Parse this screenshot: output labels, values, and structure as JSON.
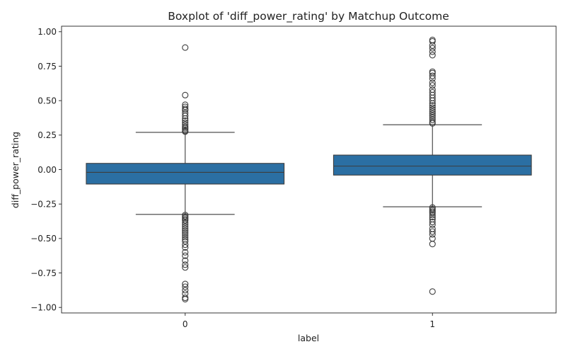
{
  "chart_data": {
    "type": "boxplot",
    "title": "Boxplot of 'diff_power_rating' by Matchup Outcome",
    "xlabel": "label",
    "ylabel": "diff_power_rating",
    "ylim": [
      -1.04,
      1.04
    ],
    "yticks": [
      1.0,
      0.75,
      0.5,
      0.25,
      0.0,
      -0.25,
      -0.5,
      -0.75,
      -1.0
    ],
    "ytick_labels": [
      "1.00",
      "0.75",
      "0.50",
      "0.25",
      "0.00",
      "−0.25",
      "−0.50",
      "−0.75",
      "−1.00"
    ],
    "categories": [
      "0",
      "1"
    ],
    "box_color": "#2b6fa3",
    "grid": false,
    "boxes": [
      {
        "category": "0",
        "whisker_low": -0.325,
        "q1": -0.105,
        "median": -0.02,
        "q3": 0.045,
        "whisker_high": 0.27,
        "outliers": [
          0.885,
          0.54,
          0.47,
          0.455,
          0.44,
          0.43,
          0.41,
          0.39,
          0.37,
          0.355,
          0.34,
          0.325,
          0.31,
          0.3,
          0.29,
          0.28,
          0.275,
          -0.33,
          -0.34,
          -0.35,
          -0.36,
          -0.37,
          -0.385,
          -0.4,
          -0.415,
          -0.43,
          -0.445,
          -0.46,
          -0.475,
          -0.49,
          -0.505,
          -0.52,
          -0.545,
          -0.565,
          -0.6,
          -0.625,
          -0.66,
          -0.69,
          -0.71,
          -0.83,
          -0.85,
          -0.875,
          -0.9,
          -0.93,
          -0.94
        ]
      },
      {
        "category": "1",
        "whisker_low": -0.27,
        "q1": -0.04,
        "median": 0.025,
        "q3": 0.105,
        "whisker_high": 0.325,
        "outliers": [
          0.94,
          0.93,
          0.9,
          0.88,
          0.855,
          0.83,
          0.71,
          0.7,
          0.68,
          0.66,
          0.63,
          0.61,
          0.58,
          0.56,
          0.54,
          0.52,
          0.5,
          0.48,
          0.465,
          0.45,
          0.435,
          0.42,
          0.405,
          0.39,
          0.375,
          0.36,
          0.345,
          0.335,
          -0.275,
          -0.285,
          -0.295,
          -0.305,
          -0.315,
          -0.33,
          -0.345,
          -0.36,
          -0.38,
          -0.4,
          -0.43,
          -0.45,
          -0.47,
          -0.5,
          -0.54,
          -0.885
        ]
      }
    ]
  }
}
